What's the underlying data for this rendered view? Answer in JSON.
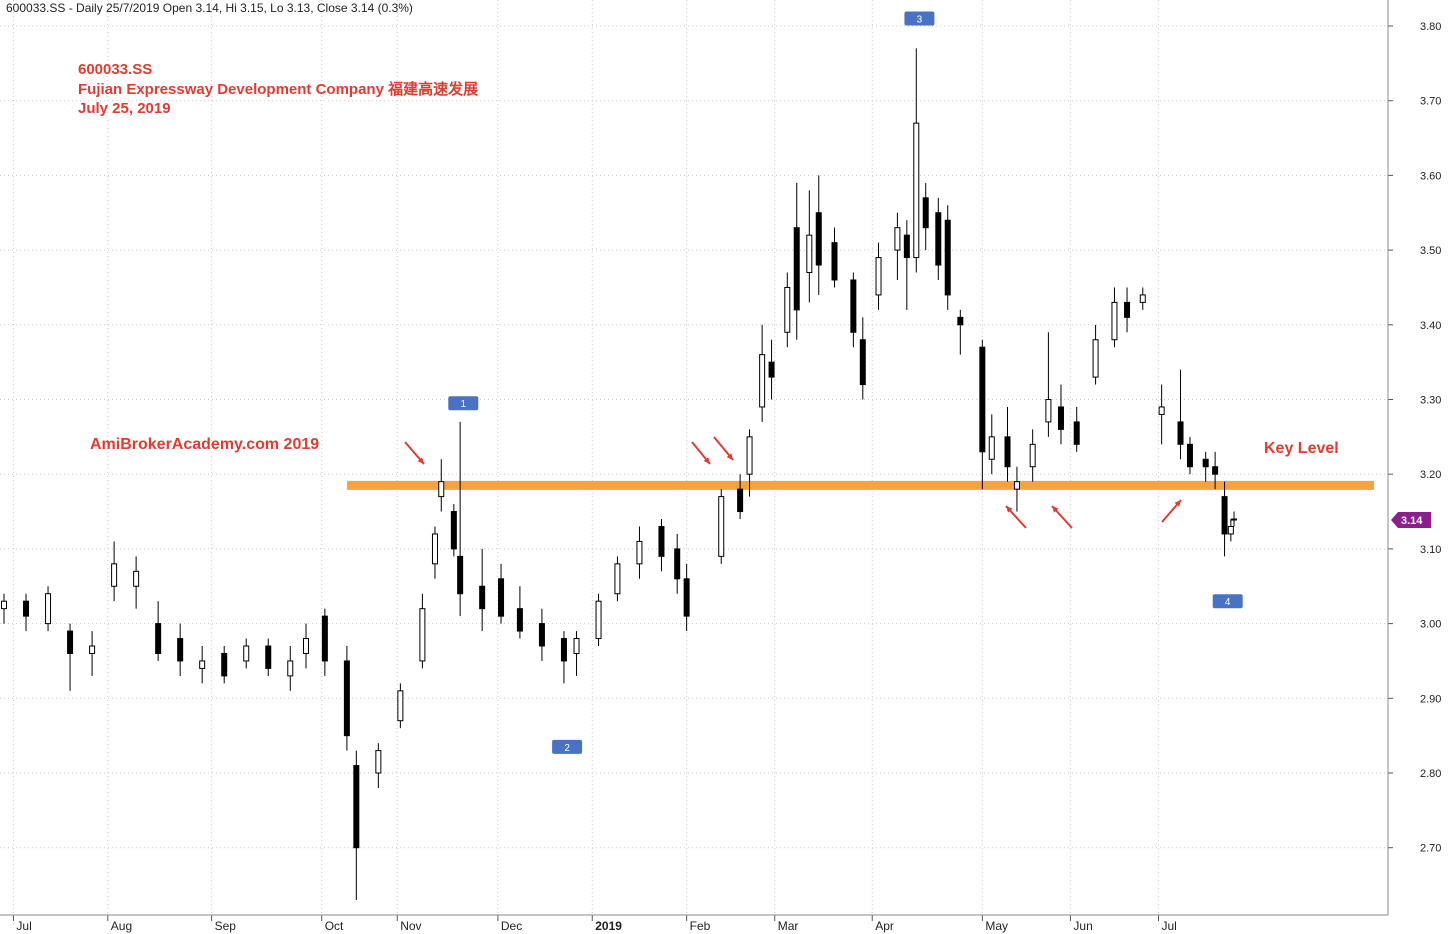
{
  "header": {
    "info": "600033.SS - Daily 25/7/2019 Open 3.14, Hi 3.15, Lo 3.13, Close 3.14 (0.3%)"
  },
  "annotations": {
    "ticker": "600033.SS",
    "company": "Fujian Expressway Development Company   福建高速发展",
    "date": "July 25, 2019",
    "watermark": "AmiBrokerAcademy.com  2019",
    "key_level": "Key Level",
    "last_price": "3.14"
  },
  "colors": {
    "candle": "#000000",
    "grid": "#c8c8c8",
    "key_level_line": "#f4a340",
    "annotation_text": "#e03c31",
    "arrow": "#e03c31",
    "marker": "#4a72c4",
    "last_price_tag": "#8b1f8b"
  },
  "chart_data": {
    "type": "candlestick",
    "title": "",
    "xlabel": "",
    "ylabel": "",
    "ylim": [
      2.61,
      3.83
    ],
    "grid": true,
    "y_ticks": [
      2.7,
      2.8,
      2.9,
      3.0,
      3.1,
      3.2,
      3.3,
      3.4,
      3.5,
      3.6,
      3.7,
      3.8
    ],
    "y_tick_labels": [
      "2.70",
      "2.80",
      "2.90",
      "3.00",
      "3.10",
      "3.20",
      "3.30",
      "3.40",
      "3.50",
      "3.60",
      "3.70",
      "3.80"
    ],
    "x_ticks": [
      {
        "label": "Jul",
        "date": "2018-07-02",
        "bold": false
      },
      {
        "label": "Aug",
        "date": "2018-08-01",
        "bold": false
      },
      {
        "label": "Sep",
        "date": "2018-09-03",
        "bold": false
      },
      {
        "label": "Oct",
        "date": "2018-10-08",
        "bold": false
      },
      {
        "label": "Nov",
        "date": "2018-11-01",
        "bold": false
      },
      {
        "label": "Dec",
        "date": "2018-12-03",
        "bold": false
      },
      {
        "label": "2019",
        "date": "2019-01-02",
        "bold": true
      },
      {
        "label": "Feb",
        "date": "2019-02-01",
        "bold": false
      },
      {
        "label": "Mar",
        "date": "2019-03-01",
        "bold": false
      },
      {
        "label": "Apr",
        "date": "2019-04-01",
        "bold": false
      },
      {
        "label": "May",
        "date": "2019-05-06",
        "bold": false
      },
      {
        "label": "Jun",
        "date": "2019-06-03",
        "bold": false
      },
      {
        "label": "Jul",
        "date": "2019-07-01",
        "bold": false
      }
    ],
    "key_level": {
      "value": 3.185,
      "from": "2018-11-05",
      "to": "2019-07-31"
    },
    "last_price": 3.14,
    "markers": [
      {
        "label": "1",
        "date": "2018-11-22",
        "price": 3.295
      },
      {
        "label": "2",
        "date": "2018-12-25",
        "price": 2.835
      },
      {
        "label": "3",
        "date": "2019-04-16",
        "price": 3.81
      },
      {
        "label": "4",
        "date": "2019-07-23",
        "price": 3.03
      }
    ],
    "candles": [
      {
        "t": "2018-06-29",
        "o": 3.02,
        "h": 3.04,
        "l": 3.0,
        "c": 3.03
      },
      {
        "t": "2018-07-06",
        "o": 3.03,
        "h": 3.04,
        "l": 2.99,
        "c": 3.01
      },
      {
        "t": "2018-07-13",
        "o": 3.0,
        "h": 3.05,
        "l": 2.99,
        "c": 3.04
      },
      {
        "t": "2018-07-20",
        "o": 2.99,
        "h": 3.0,
        "l": 2.91,
        "c": 2.96
      },
      {
        "t": "2018-07-27",
        "o": 2.96,
        "h": 2.99,
        "l": 2.93,
        "c": 2.97
      },
      {
        "t": "2018-08-03",
        "o": 3.05,
        "h": 3.11,
        "l": 3.03,
        "c": 3.08
      },
      {
        "t": "2018-08-10",
        "o": 3.05,
        "h": 3.09,
        "l": 3.02,
        "c": 3.07
      },
      {
        "t": "2018-08-17",
        "o": 3.0,
        "h": 3.03,
        "l": 2.95,
        "c": 2.96
      },
      {
        "t": "2018-08-24",
        "o": 2.98,
        "h": 3.0,
        "l": 2.93,
        "c": 2.95
      },
      {
        "t": "2018-08-31",
        "o": 2.94,
        "h": 2.97,
        "l": 2.92,
        "c": 2.95
      },
      {
        "t": "2018-09-07",
        "o": 2.96,
        "h": 2.97,
        "l": 2.92,
        "c": 2.93
      },
      {
        "t": "2018-09-14",
        "o": 2.95,
        "h": 2.98,
        "l": 2.94,
        "c": 2.97
      },
      {
        "t": "2018-09-21",
        "o": 2.97,
        "h": 2.98,
        "l": 2.93,
        "c": 2.94
      },
      {
        "t": "2018-09-28",
        "o": 2.93,
        "h": 2.97,
        "l": 2.91,
        "c": 2.95
      },
      {
        "t": "2018-10-03",
        "o": 2.96,
        "h": 3.0,
        "l": 2.94,
        "c": 2.98
      },
      {
        "t": "2018-10-09",
        "o": 3.01,
        "h": 3.02,
        "l": 2.93,
        "c": 2.95
      },
      {
        "t": "2018-10-16",
        "o": 2.95,
        "h": 2.97,
        "l": 2.83,
        "c": 2.85
      },
      {
        "t": "2018-10-19",
        "o": 2.81,
        "h": 2.83,
        "l": 2.63,
        "c": 2.7
      },
      {
        "t": "2018-10-26",
        "o": 2.8,
        "h": 2.84,
        "l": 2.78,
        "c": 2.83
      },
      {
        "t": "2018-11-02",
        "o": 2.87,
        "h": 2.92,
        "l": 2.86,
        "c": 2.91
      },
      {
        "t": "2018-11-09",
        "o": 2.95,
        "h": 3.04,
        "l": 2.94,
        "c": 3.02
      },
      {
        "t": "2018-11-13",
        "o": 3.08,
        "h": 3.13,
        "l": 3.06,
        "c": 3.12
      },
      {
        "t": "2018-11-15",
        "o": 3.17,
        "h": 3.22,
        "l": 3.15,
        "c": 3.19
      },
      {
        "t": "2018-11-19",
        "o": 3.15,
        "h": 3.16,
        "l": 3.09,
        "c": 3.1
      },
      {
        "t": "2018-11-21",
        "o": 3.09,
        "h": 3.27,
        "l": 3.01,
        "c": 3.04
      },
      {
        "t": "2018-11-28",
        "o": 3.05,
        "h": 3.1,
        "l": 2.99,
        "c": 3.02
      },
      {
        "t": "2018-12-04",
        "o": 3.06,
        "h": 3.08,
        "l": 3.0,
        "c": 3.01
      },
      {
        "t": "2018-12-10",
        "o": 3.02,
        "h": 3.05,
        "l": 2.98,
        "c": 2.99
      },
      {
        "t": "2018-12-17",
        "o": 3.0,
        "h": 3.02,
        "l": 2.95,
        "c": 2.97
      },
      {
        "t": "2018-12-24",
        "o": 2.98,
        "h": 2.99,
        "l": 2.92,
        "c": 2.95
      },
      {
        "t": "2018-12-28",
        "o": 2.96,
        "h": 2.99,
        "l": 2.93,
        "c": 2.98
      },
      {
        "t": "2019-01-04",
        "o": 2.98,
        "h": 3.04,
        "l": 2.97,
        "c": 3.03
      },
      {
        "t": "2019-01-10",
        "o": 3.04,
        "h": 3.09,
        "l": 3.03,
        "c": 3.08
      },
      {
        "t": "2019-01-17",
        "o": 3.08,
        "h": 3.13,
        "l": 3.06,
        "c": 3.11
      },
      {
        "t": "2019-01-24",
        "o": 3.13,
        "h": 3.14,
        "l": 3.07,
        "c": 3.09
      },
      {
        "t": "2019-01-29",
        "o": 3.1,
        "h": 3.12,
        "l": 3.04,
        "c": 3.06
      },
      {
        "t": "2019-02-01",
        "o": 3.06,
        "h": 3.08,
        "l": 2.99,
        "c": 3.01
      },
      {
        "t": "2019-02-12",
        "o": 3.09,
        "h": 3.18,
        "l": 3.08,
        "c": 3.17
      },
      {
        "t": "2019-02-18",
        "o": 3.18,
        "h": 3.2,
        "l": 3.14,
        "c": 3.15
      },
      {
        "t": "2019-02-21",
        "o": 3.2,
        "h": 3.26,
        "l": 3.17,
        "c": 3.25
      },
      {
        "t": "2019-02-25",
        "o": 3.29,
        "h": 3.4,
        "l": 3.27,
        "c": 3.36
      },
      {
        "t": "2019-02-28",
        "o": 3.35,
        "h": 3.38,
        "l": 3.3,
        "c": 3.33
      },
      {
        "t": "2019-03-05",
        "o": 3.39,
        "h": 3.47,
        "l": 3.37,
        "c": 3.45
      },
      {
        "t": "2019-03-08",
        "o": 3.53,
        "h": 3.59,
        "l": 3.38,
        "c": 3.42
      },
      {
        "t": "2019-03-12",
        "o": 3.47,
        "h": 3.58,
        "l": 3.43,
        "c": 3.52
      },
      {
        "t": "2019-03-15",
        "o": 3.55,
        "h": 3.6,
        "l": 3.44,
        "c": 3.48
      },
      {
        "t": "2019-03-20",
        "o": 3.51,
        "h": 3.53,
        "l": 3.45,
        "c": 3.46
      },
      {
        "t": "2019-03-26",
        "o": 3.46,
        "h": 3.47,
        "l": 3.37,
        "c": 3.39
      },
      {
        "t": "2019-03-29",
        "o": 3.38,
        "h": 3.41,
        "l": 3.3,
        "c": 3.32
      },
      {
        "t": "2019-04-03",
        "o": 3.44,
        "h": 3.51,
        "l": 3.42,
        "c": 3.49
      },
      {
        "t": "2019-04-09",
        "o": 3.5,
        "h": 3.55,
        "l": 3.46,
        "c": 3.53
      },
      {
        "t": "2019-04-12",
        "o": 3.52,
        "h": 3.54,
        "l": 3.42,
        "c": 3.49
      },
      {
        "t": "2019-04-15",
        "o": 3.49,
        "h": 3.77,
        "l": 3.47,
        "c": 3.67
      },
      {
        "t": "2019-04-18",
        "o": 3.57,
        "h": 3.59,
        "l": 3.5,
        "c": 3.53
      },
      {
        "t": "2019-04-22",
        "o": 3.55,
        "h": 3.57,
        "l": 3.46,
        "c": 3.48
      },
      {
        "t": "2019-04-25",
        "o": 3.54,
        "h": 3.56,
        "l": 3.42,
        "c": 3.44
      },
      {
        "t": "2019-04-29",
        "o": 3.41,
        "h": 3.42,
        "l": 3.36,
        "c": 3.4
      },
      {
        "t": "2019-05-06",
        "o": 3.37,
        "h": 3.38,
        "l": 3.18,
        "c": 3.23
      },
      {
        "t": "2019-05-09",
        "o": 3.22,
        "h": 3.28,
        "l": 3.2,
        "c": 3.25
      },
      {
        "t": "2019-05-14",
        "o": 3.25,
        "h": 3.29,
        "l": 3.19,
        "c": 3.21
      },
      {
        "t": "2019-05-17",
        "o": 3.18,
        "h": 3.21,
        "l": 3.15,
        "c": 3.19
      },
      {
        "t": "2019-05-22",
        "o": 3.21,
        "h": 3.26,
        "l": 3.19,
        "c": 3.24
      },
      {
        "t": "2019-05-27",
        "o": 3.27,
        "h": 3.39,
        "l": 3.25,
        "c": 3.3
      },
      {
        "t": "2019-05-31",
        "o": 3.29,
        "h": 3.32,
        "l": 3.24,
        "c": 3.26
      },
      {
        "t": "2019-06-05",
        "o": 3.27,
        "h": 3.29,
        "l": 3.23,
        "c": 3.24
      },
      {
        "t": "2019-06-11",
        "o": 3.33,
        "h": 3.4,
        "l": 3.32,
        "c": 3.38
      },
      {
        "t": "2019-06-17",
        "o": 3.38,
        "h": 3.45,
        "l": 3.37,
        "c": 3.43
      },
      {
        "t": "2019-06-21",
        "o": 3.43,
        "h": 3.45,
        "l": 3.39,
        "c": 3.41
      },
      {
        "t": "2019-06-26",
        "o": 3.43,
        "h": 3.45,
        "l": 3.42,
        "c": 3.44
      },
      {
        "t": "2019-07-02",
        "o": 3.28,
        "h": 3.32,
        "l": 3.24,
        "c": 3.29
      },
      {
        "t": "2019-07-08",
        "o": 3.27,
        "h": 3.34,
        "l": 3.22,
        "c": 3.24
      },
      {
        "t": "2019-07-11",
        "o": 3.24,
        "h": 3.25,
        "l": 3.2,
        "c": 3.21
      },
      {
        "t": "2019-07-16",
        "o": 3.22,
        "h": 3.23,
        "l": 3.19,
        "c": 3.21
      },
      {
        "t": "2019-07-19",
        "o": 3.21,
        "h": 3.23,
        "l": 3.18,
        "c": 3.2
      },
      {
        "t": "2019-07-22",
        "o": 3.17,
        "h": 3.19,
        "l": 3.09,
        "c": 3.12
      },
      {
        "t": "2019-07-24",
        "o": 3.12,
        "h": 3.14,
        "l": 3.11,
        "c": 3.13
      },
      {
        "t": "2019-07-25",
        "o": 3.14,
        "h": 3.15,
        "l": 3.13,
        "c": 3.14
      }
    ]
  }
}
